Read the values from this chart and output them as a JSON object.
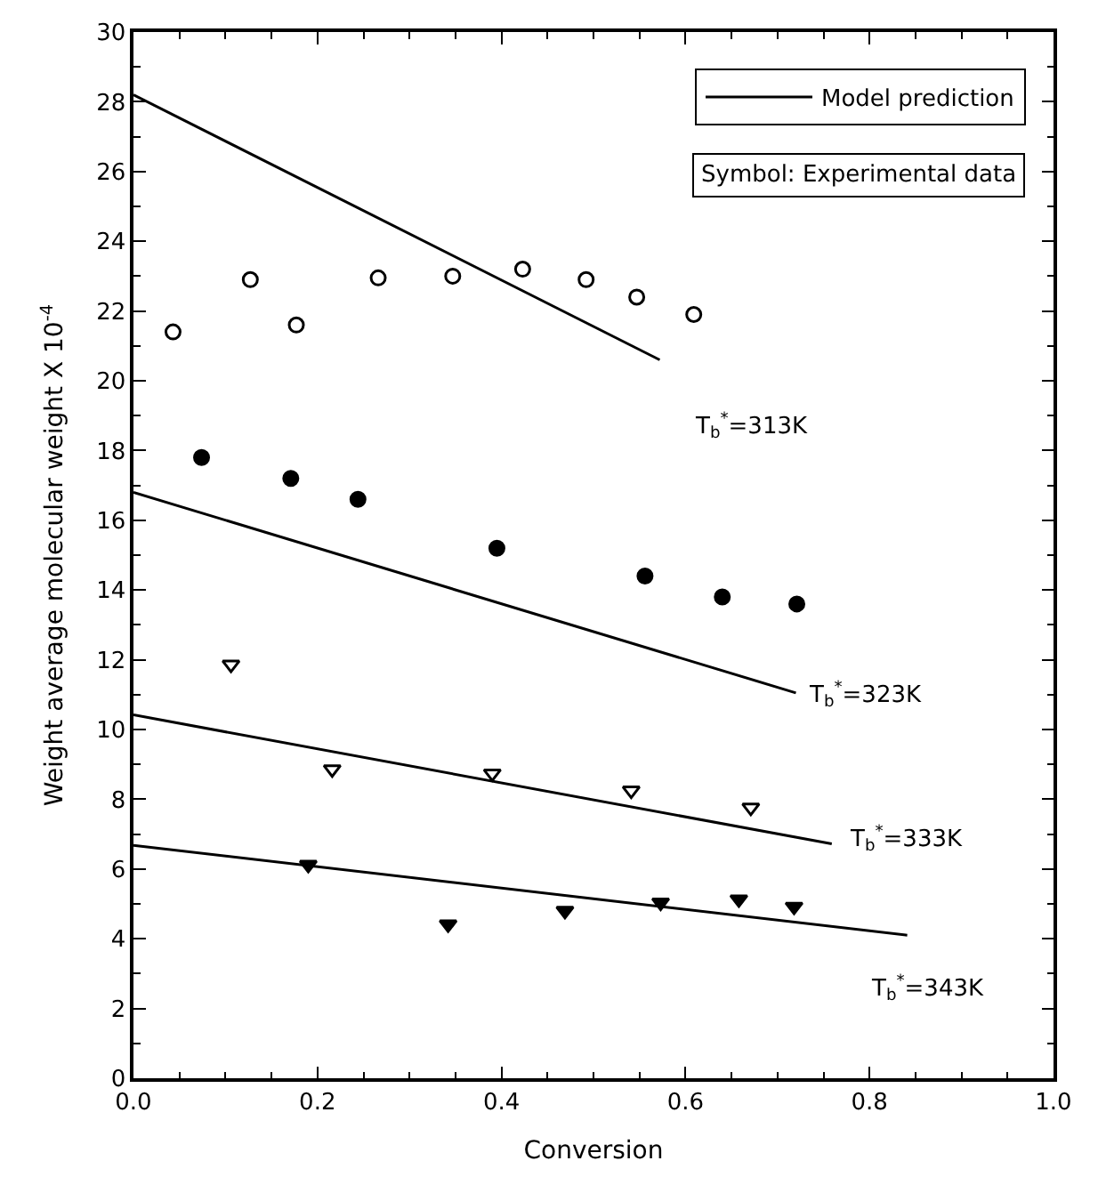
{
  "chart_data": {
    "type": "scatter",
    "xlabel": "Conversion",
    "ylabel": "Weight average molecular weight X 10$^{-4}$",
    "xlim": [
      0,
      1
    ],
    "xticks": [
      {
        "value": 0,
        "label": "0.0"
      },
      {
        "value": 0.2,
        "label": "0.2"
      },
      {
        "value": 0.4,
        "label": "0.4"
      },
      {
        "value": 0.6,
        "label": "0.6"
      },
      {
        "value": 0.8,
        "label": "0.8"
      },
      {
        "value": 1,
        "label": "1.0"
      }
    ],
    "ylim": [
      0,
      30
    ],
    "yticks": [
      0,
      2,
      4,
      6,
      8,
      10,
      12,
      14,
      16,
      18,
      20,
      22,
      24,
      26,
      28,
      30
    ],
    "legend": "top right",
    "series": [
      {
        "type": "line",
        "name": "Model prediction",
        "color": "#000000",
        "marker": "none",
        "line_style": "solid",
        "x": [
          0,
          0.572
        ],
        "values": [
          28.2,
          20.6
        ]
      },
      {
        "type": "line",
        "color": "#000000",
        "marker": "none",
        "line_style": "solid",
        "x": [
          0,
          0.72
        ],
        "values": [
          16.8,
          11.05
        ]
      },
      {
        "type": "line",
        "color": "#000000",
        "marker": "none",
        "line_style": "solid",
        "x": [
          0,
          0.759
        ],
        "values": [
          10.42,
          6.72
        ]
      },
      {
        "type": "line",
        "color": "#000000",
        "marker": "none",
        "line_style": "solid",
        "x": [
          0,
          0.841
        ],
        "values": [
          6.68,
          4.1
        ]
      },
      {
        "color": "#000000",
        "marker": "circle-open",
        "x": [
          0.043,
          0.127,
          0.177,
          0.266,
          0.347,
          0.423,
          0.492,
          0.547,
          0.609
        ],
        "values": [
          21.4,
          22.9,
          21.6,
          22.95,
          23.0,
          23.2,
          22.9,
          22.4,
          21.9
        ]
      },
      {
        "color": "#000000",
        "marker": "circle",
        "x": [
          0.074,
          0.171,
          0.244,
          0.395,
          0.556,
          0.64,
          0.721
        ],
        "values": [
          17.8,
          17.2,
          16.6,
          15.2,
          14.4,
          13.8,
          13.6
        ]
      },
      {
        "color": "#000000",
        "marker": "triangle-down-open",
        "x": [
          0.106,
          0.216,
          0.39,
          0.541,
          0.671
        ],
        "values": [
          11.86,
          8.86,
          8.74,
          8.25,
          7.76
        ]
      },
      {
        "color": "#000000",
        "marker": "triangle-down",
        "x": [
          0.19,
          0.342,
          0.469,
          0.573,
          0.658,
          0.718
        ],
        "values": [
          6.12,
          4.41,
          4.8,
          5.04,
          5.13,
          4.92
        ]
      }
    ],
    "annotations": [
      "Symbol: Experimental data",
      "T$_{b}$$^{*}$=313K",
      "T$_{b}$$^{*}$=323K",
      "T$_{b}$$^{*}$=333K",
      "T$_{b}$$^{*}$=343K"
    ]
  }
}
